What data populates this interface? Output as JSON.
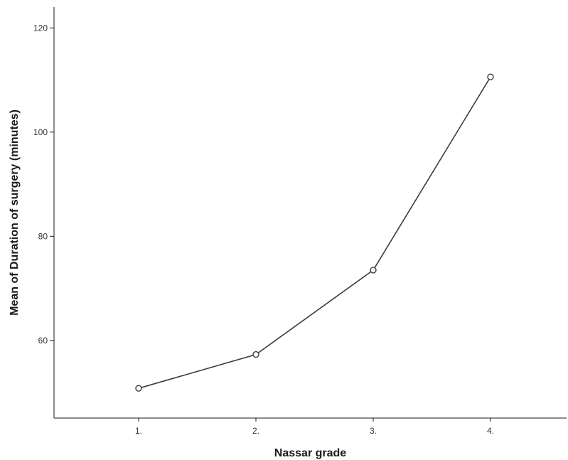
{
  "chart_data": {
    "type": "line",
    "categories": [
      "1.",
      "2.",
      "3.",
      "4."
    ],
    "values": [
      50.8,
      57.3,
      73.5,
      110.6
    ],
    "xlabel": "Nassar grade",
    "ylabel": "Mean of Duration of surgery (minutes)",
    "yticks": [
      60,
      80,
      100,
      120
    ],
    "ylim": [
      45.1,
      124.0
    ],
    "grid": false,
    "colors": {
      "line": "#3c3c3c",
      "axis": "#1a1a1a"
    }
  }
}
